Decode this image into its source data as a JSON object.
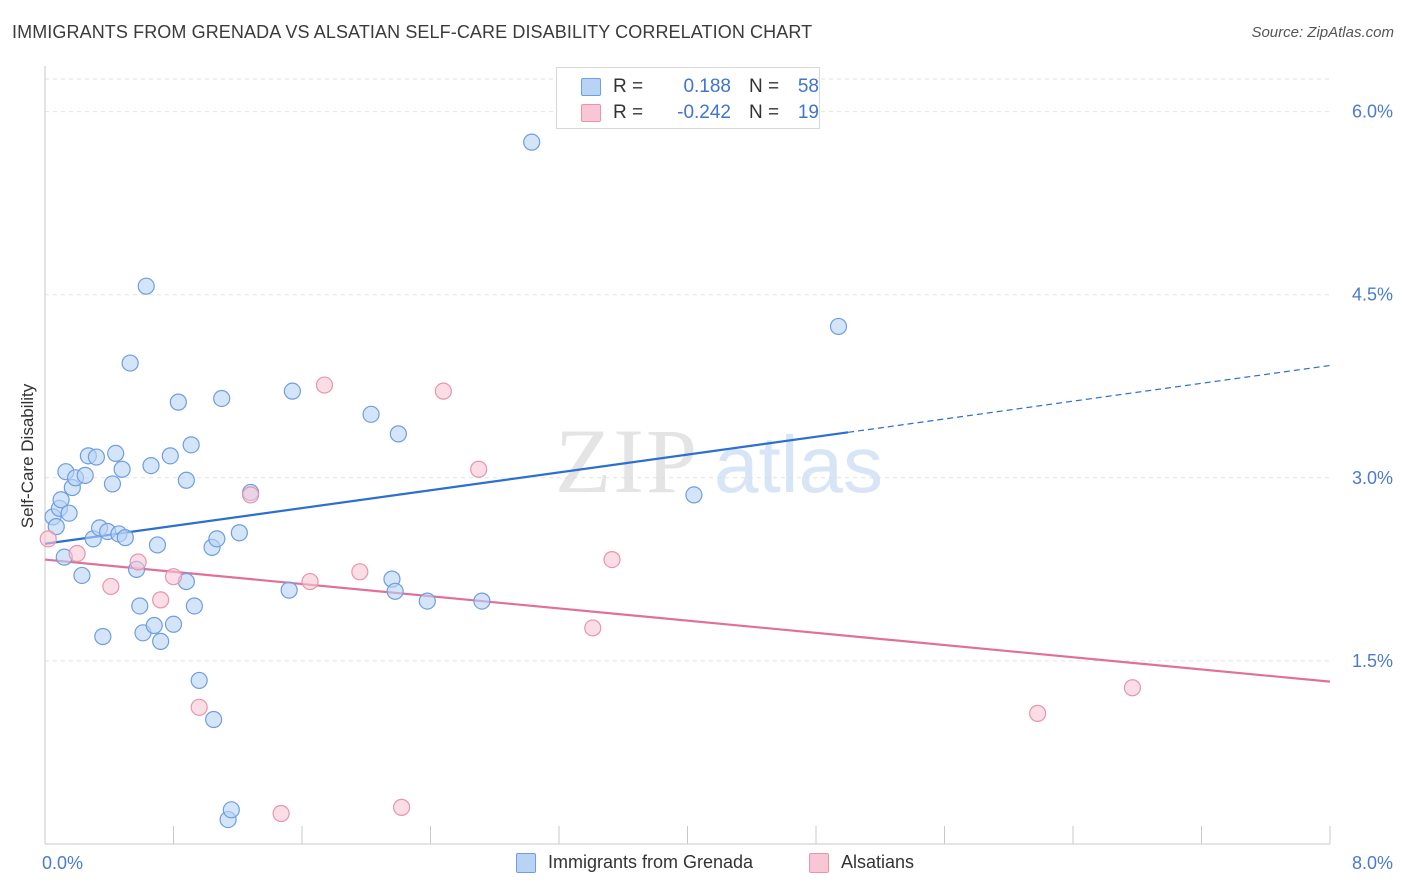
{
  "title": "IMMIGRANTS FROM GRENADA VS ALSATIAN SELF-CARE DISABILITY CORRELATION CHART",
  "source": "Source: ZipAtlas.com",
  "watermark": {
    "zip": "ZIP",
    "atlas": "atlas"
  },
  "legend_top": {
    "rows": [
      {
        "r_label": "R =",
        "r_value": "0.188",
        "n_label": "N =",
        "n_value": "58"
      },
      {
        "r_label": "R =",
        "r_value": "-0.242",
        "n_label": "N =",
        "n_value": "19"
      }
    ]
  },
  "colors": {
    "blue_fill": "#b9d3f5",
    "blue_stroke": "#6e9ee0",
    "blue_line": "#2b6fd0",
    "pink_fill": "#f8c6d5",
    "pink_stroke": "#e894ae",
    "pink_line": "#e0709a",
    "axis_text": "#4a7bd0",
    "grid": "#e2e2e2"
  },
  "chart_data": {
    "type": "scatter",
    "title": "IMMIGRANTS FROM GRENADA VS ALSATIAN SELF-CARE DISABILITY CORRELATION CHART",
    "xlabel": "",
    "ylabel": "Self-Care Disability",
    "xlim": [
      0,
      8
    ],
    "ylim": [
      0,
      6.3
    ],
    "x_tick_labels": [
      "0.0%",
      "8.0%"
    ],
    "y_ticks": [
      1.5,
      3.0,
      4.5,
      6.0
    ],
    "y_tick_labels": [
      "1.5%",
      "3.0%",
      "4.5%",
      "6.0%"
    ],
    "grid": true,
    "legend_position": "bottom",
    "series": [
      {
        "name": "Immigrants from Grenada",
        "color": "#6e9ee0",
        "points": [
          [
            0.05,
            2.68
          ],
          [
            0.07,
            2.6
          ],
          [
            0.09,
            2.75
          ],
          [
            0.1,
            2.82
          ],
          [
            0.12,
            2.35
          ],
          [
            0.13,
            3.05
          ],
          [
            0.15,
            2.71
          ],
          [
            0.17,
            2.92
          ],
          [
            0.19,
            3.0
          ],
          [
            0.23,
            2.2
          ],
          [
            0.25,
            3.02
          ],
          [
            0.27,
            3.18
          ],
          [
            0.3,
            2.5
          ],
          [
            0.32,
            3.17
          ],
          [
            0.34,
            2.59
          ],
          [
            0.36,
            1.7
          ],
          [
            0.39,
            2.56
          ],
          [
            0.42,
            2.95
          ],
          [
            0.44,
            3.2
          ],
          [
            0.46,
            2.54
          ],
          [
            0.48,
            3.07
          ],
          [
            0.5,
            2.51
          ],
          [
            0.53,
            3.94
          ],
          [
            0.57,
            2.25
          ],
          [
            0.59,
            1.95
          ],
          [
            0.61,
            1.73
          ],
          [
            0.63,
            4.57
          ],
          [
            0.66,
            3.1
          ],
          [
            0.68,
            1.79
          ],
          [
            0.7,
            2.45
          ],
          [
            0.72,
            1.66
          ],
          [
            0.78,
            3.18
          ],
          [
            0.8,
            1.8
          ],
          [
            0.83,
            3.62
          ],
          [
            0.88,
            2.98
          ],
          [
            0.91,
            3.27
          ],
          [
            0.93,
            1.95
          ],
          [
            0.96,
            1.34
          ],
          [
            1.04,
            2.43
          ],
          [
            1.07,
            2.5
          ],
          [
            1.1,
            3.65
          ],
          [
            1.14,
            0.2
          ],
          [
            1.16,
            0.28
          ],
          [
            1.21,
            2.55
          ],
          [
            1.28,
            2.88
          ],
          [
            1.52,
            2.08
          ],
          [
            1.54,
            3.71
          ],
          [
            2.03,
            3.52
          ],
          [
            2.16,
            2.17
          ],
          [
            2.18,
            2.07
          ],
          [
            2.2,
            3.36
          ],
          [
            2.38,
            1.99
          ],
          [
            2.72,
            1.99
          ],
          [
            3.03,
            5.75
          ],
          [
            4.04,
            2.86
          ],
          [
            4.94,
            4.24
          ],
          [
            0.88,
            2.15
          ],
          [
            1.05,
            1.02
          ]
        ]
      },
      {
        "name": "Alsatians",
        "color": "#e894ae",
        "points": [
          [
            0.02,
            2.5
          ],
          [
            0.2,
            2.38
          ],
          [
            0.41,
            2.11
          ],
          [
            0.58,
            2.31
          ],
          [
            0.72,
            2.0
          ],
          [
            0.8,
            2.19
          ],
          [
            0.96,
            1.12
          ],
          [
            1.28,
            2.86
          ],
          [
            1.47,
            0.25
          ],
          [
            1.65,
            2.15
          ],
          [
            1.74,
            3.76
          ],
          [
            1.96,
            2.23
          ],
          [
            2.22,
            0.3
          ],
          [
            2.48,
            3.71
          ],
          [
            2.7,
            3.07
          ],
          [
            3.41,
            1.77
          ],
          [
            3.53,
            2.33
          ],
          [
            6.18,
            1.07
          ],
          [
            6.77,
            1.28
          ]
        ]
      }
    ],
    "trendlines": [
      {
        "series": "Immigrants from Grenada",
        "x0": 0.0,
        "y0": 2.46,
        "x_solid_end": 5.0,
        "x1": 8.0,
        "y1": 3.92
      },
      {
        "series": "Alsatians",
        "x0": 0.0,
        "y0": 2.33,
        "x1": 8.0,
        "y1": 1.33
      }
    ]
  },
  "bottom_legend": [
    {
      "label": "Immigrants from Grenada"
    },
    {
      "label": "Alsatians"
    }
  ]
}
